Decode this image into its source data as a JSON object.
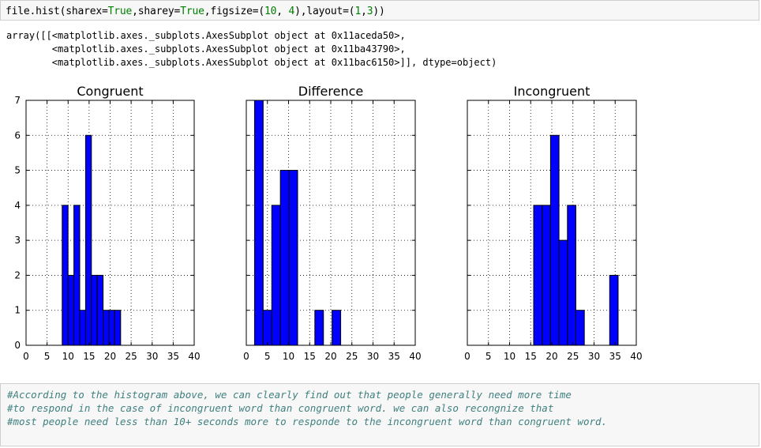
{
  "input_cell": {
    "code": {
      "p1": "file.hist(sharex=",
      "v1": "True",
      "p2": ",sharey=",
      "v2": "True",
      "p3": ",figsize=(",
      "n1": "10",
      "p4": ", ",
      "n2": "4",
      "p5": "),layout=(",
      "n3": "1",
      "p6": ",",
      "n4": "3",
      "p7": "))"
    }
  },
  "output_cell": {
    "lines": [
      "array([[<matplotlib.axes._subplots.AxesSubplot object at 0x11aceda50>,",
      "        <matplotlib.axes._subplots.AxesSubplot object at 0x11ba43790>,",
      "        <matplotlib.axes._subplots.AxesSubplot object at 0x11bac6150>]], dtype=object)"
    ]
  },
  "chart_data": [
    {
      "type": "bar",
      "title": "Congruent",
      "xlim": [
        0,
        40
      ],
      "ylim": [
        0,
        7
      ],
      "xticks": [
        "0",
        "5",
        "10",
        "15",
        "20",
        "25",
        "30",
        "35",
        "40"
      ],
      "yticks": [
        "0",
        "1",
        "2",
        "3",
        "4",
        "5",
        "6",
        "7"
      ],
      "grid": true,
      "bin_edges": [
        8.6,
        9.99,
        11.38,
        12.77,
        14.16,
        15.55,
        16.94,
        18.33,
        19.72,
        21.11,
        22.5
      ],
      "values": [
        4,
        2,
        4,
        1,
        6,
        2,
        2,
        1,
        1,
        1
      ]
    },
    {
      "type": "bar",
      "title": "Difference",
      "xlim": [
        0,
        40
      ],
      "ylim": [
        0,
        7
      ],
      "xticks": [
        "0",
        "5",
        "10",
        "15",
        "20",
        "25",
        "30",
        "35",
        "40"
      ],
      "grid": true,
      "bin_edges": [
        1.95,
        3.99,
        6.03,
        8.07,
        10.11,
        12.15,
        14.19,
        16.23,
        18.27,
        20.31,
        22.35
      ],
      "values": [
        7,
        1,
        4,
        5,
        5,
        0,
        0,
        1,
        0,
        1
      ]
    },
    {
      "type": "bar",
      "title": "Incongruent",
      "xlim": [
        0,
        40
      ],
      "ylim": [
        0,
        7
      ],
      "xticks": [
        "0",
        "5",
        "10",
        "15",
        "20",
        "25",
        "30",
        "35",
        "40"
      ],
      "grid": true,
      "bin_edges": [
        15.7,
        17.7,
        19.7,
        21.7,
        23.7,
        25.7,
        27.7,
        29.7,
        31.7,
        33.7,
        35.7
      ],
      "values": [
        4,
        4,
        6,
        3,
        4,
        1,
        0,
        0,
        0,
        2
      ]
    }
  ],
  "comment_cell": {
    "lines": [
      "#According to the histogram above, we can clearly find out that people generally need more time",
      "#to respond in the case of incongruent word than congruent word. we can also recongnize that",
      "#most people need less than 10+ seconds more to responde to the incongruent word than congruent word."
    ]
  },
  "colors": {
    "bar_fill": "#0000ff",
    "bar_edge": "#000000",
    "grid": "#000000",
    "comment": "#408080"
  }
}
